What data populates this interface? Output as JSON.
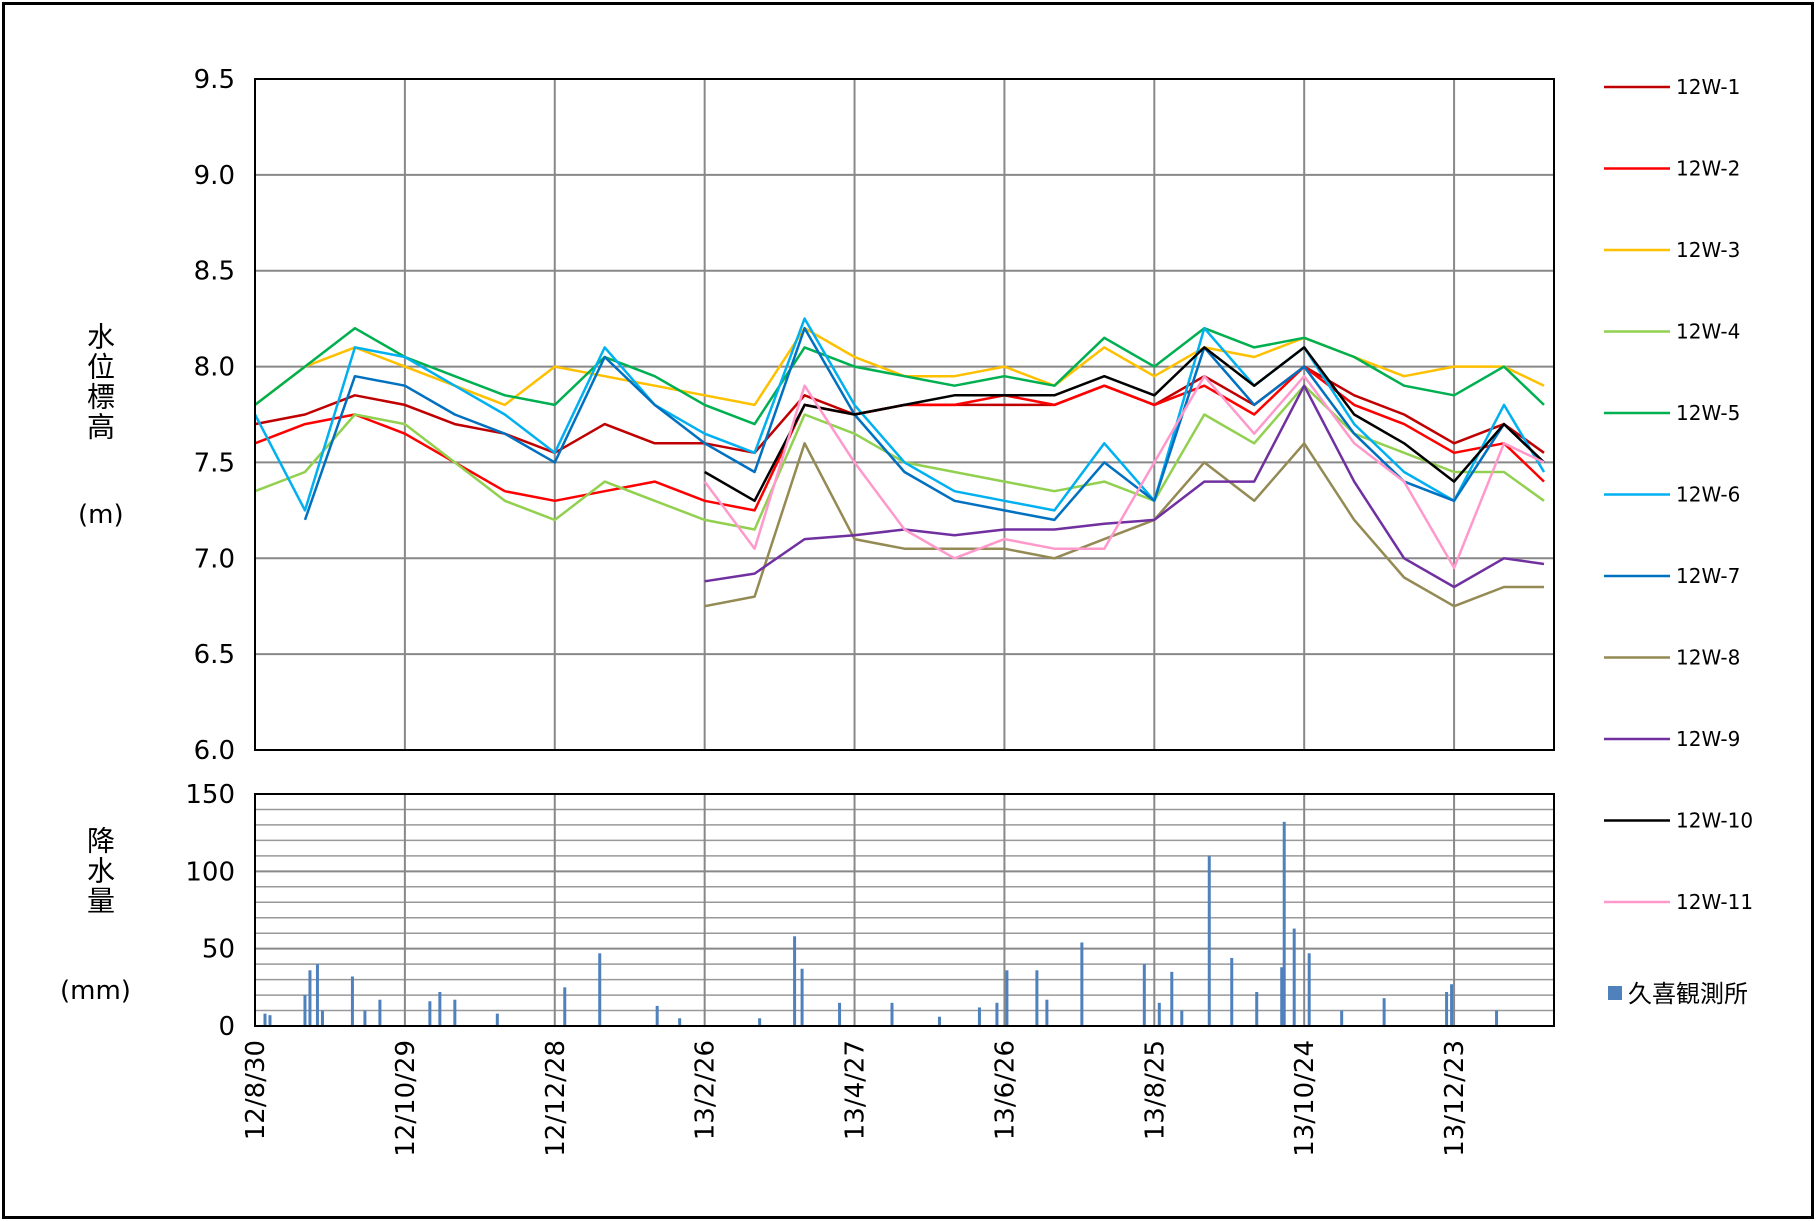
{
  "chart_data": [
    {
      "type": "line",
      "y_label": "水位標高",
      "y_unit": "(m)",
      "ylim": [
        6.0,
        9.5
      ],
      "yticks": [
        {
          "value": 6.0,
          "label": "6.0"
        },
        {
          "value": 6.5,
          "label": "6.5"
        },
        {
          "value": 7.0,
          "label": "7.0"
        },
        {
          "value": 7.5,
          "label": "7.5"
        },
        {
          "value": 8.0,
          "label": "8.0"
        },
        {
          "value": 8.5,
          "label": "8.5"
        },
        {
          "value": 9.0,
          "label": "9.0"
        },
        {
          "value": 9.5,
          "label": "9.5"
        }
      ],
      "grid": true,
      "x": [
        "12/8/30",
        "12/9/19",
        "12/10/9",
        "12/10/29",
        "12/11/18",
        "12/12/8",
        "12/12/28",
        "13/1/17",
        "13/2/6",
        "13/2/26",
        "13/3/18",
        "13/4/7",
        "13/4/27",
        "13/5/17",
        "13/6/6",
        "13/6/26",
        "13/7/16",
        "13/8/5",
        "13/8/25",
        "13/9/14",
        "13/10/4",
        "13/10/24",
        "13/11/13",
        "13/12/3",
        "13/12/23",
        "14/1/12",
        "14/1/28"
      ],
      "series": [
        {
          "name": "12W-1",
          "color": "#c00000",
          "values": [
            7.7,
            7.75,
            7.85,
            7.8,
            7.7,
            7.65,
            7.55,
            7.7,
            7.6,
            7.6,
            7.55,
            7.85,
            7.75,
            7.8,
            7.8,
            7.8,
            7.8,
            7.9,
            7.8,
            7.95,
            7.8,
            8.0,
            7.85,
            7.75,
            7.6,
            7.7,
            7.55
          ]
        },
        {
          "name": "12W-2",
          "color": "#ff0000",
          "values": [
            7.6,
            7.7,
            7.75,
            7.65,
            7.5,
            7.35,
            7.3,
            7.35,
            7.4,
            7.3,
            7.25,
            7.8,
            7.75,
            7.8,
            7.8,
            7.85,
            7.8,
            7.9,
            7.8,
            7.9,
            7.75,
            8.0,
            7.8,
            7.7,
            7.55,
            7.6,
            7.4
          ]
        },
        {
          "name": "12W-3",
          "color": "#ffc000",
          "values": [
            7.8,
            8.0,
            8.1,
            8.0,
            7.9,
            7.8,
            8.0,
            7.95,
            7.9,
            7.85,
            7.8,
            8.2,
            8.05,
            7.95,
            7.95,
            8.0,
            7.9,
            8.1,
            7.95,
            8.1,
            8.05,
            8.15,
            8.05,
            7.95,
            8.0,
            8.0,
            7.9
          ]
        },
        {
          "name": "12W-4",
          "color": "#92d050",
          "values": [
            7.35,
            7.45,
            7.75,
            7.7,
            7.5,
            7.3,
            7.2,
            7.4,
            7.3,
            7.2,
            7.15,
            7.75,
            7.65,
            7.5,
            7.45,
            7.4,
            7.35,
            7.4,
            7.3,
            7.75,
            7.6,
            7.9,
            7.65,
            7.55,
            7.45,
            7.45,
            7.3
          ]
        },
        {
          "name": "12W-5",
          "color": "#00b050",
          "values": [
            7.8,
            8.0,
            8.2,
            8.05,
            7.95,
            7.85,
            7.8,
            8.05,
            7.95,
            7.8,
            7.7,
            8.1,
            8.0,
            7.95,
            7.9,
            7.95,
            7.9,
            8.15,
            8.0,
            8.2,
            8.1,
            8.15,
            8.05,
            7.9,
            7.85,
            8.0,
            7.8
          ]
        },
        {
          "name": "12W-6",
          "color": "#00b0f0",
          "values": [
            7.75,
            7.25,
            8.1,
            8.05,
            7.9,
            7.75,
            7.55,
            8.1,
            7.8,
            7.65,
            7.55,
            8.25,
            7.8,
            7.5,
            7.35,
            7.3,
            7.25,
            7.6,
            7.3,
            8.2,
            7.9,
            8.1,
            7.7,
            7.45,
            7.3,
            7.8,
            7.45
          ]
        },
        {
          "name": "12W-7",
          "color": "#0070c0",
          "values": [
            null,
            7.2,
            7.95,
            7.9,
            7.75,
            7.65,
            7.5,
            8.05,
            7.8,
            7.6,
            7.45,
            8.2,
            7.75,
            7.45,
            7.3,
            7.25,
            7.2,
            7.5,
            7.3,
            8.1,
            7.8,
            8.0,
            7.65,
            7.4,
            7.3,
            7.7,
            7.5
          ]
        },
        {
          "name": "12W-8",
          "color": "#948a54",
          "values": [
            null,
            null,
            null,
            null,
            null,
            null,
            null,
            null,
            null,
            6.75,
            6.8,
            7.6,
            7.1,
            7.05,
            7.05,
            7.05,
            7.0,
            7.1,
            7.2,
            7.5,
            7.3,
            7.6,
            7.2,
            6.9,
            6.75,
            6.85,
            6.85
          ]
        },
        {
          "name": "12W-9",
          "color": "#7030a0",
          "values": [
            null,
            null,
            null,
            null,
            null,
            null,
            null,
            null,
            null,
            6.88,
            6.92,
            7.1,
            7.12,
            7.15,
            7.12,
            7.15,
            7.15,
            7.18,
            7.2,
            7.4,
            7.4,
            7.9,
            7.4,
            7.0,
            6.85,
            7.0,
            6.97
          ]
        },
        {
          "name": "12W-10",
          "color": "#000000",
          "values": [
            null,
            null,
            null,
            null,
            null,
            null,
            null,
            null,
            null,
            7.45,
            7.3,
            7.8,
            7.75,
            7.8,
            7.85,
            7.85,
            7.85,
            7.95,
            7.85,
            8.1,
            7.9,
            8.1,
            7.75,
            7.6,
            7.4,
            7.7,
            7.5
          ]
        },
        {
          "name": "12W-11",
          "color": "#ff99cc",
          "values": [
            null,
            null,
            null,
            null,
            null,
            null,
            null,
            null,
            null,
            7.4,
            7.05,
            7.9,
            7.5,
            7.15,
            7.0,
            7.1,
            7.05,
            7.05,
            7.5,
            7.95,
            7.65,
            7.95,
            7.6,
            7.4,
            6.95,
            7.6,
            7.5
          ]
        }
      ]
    },
    {
      "type": "bar",
      "y_label": "降水量",
      "y_unit": "(mm)",
      "ylim": [
        0,
        150
      ],
      "yticks": [
        0,
        50,
        100,
        150
      ],
      "minor_yticks": [
        10,
        20,
        30,
        40,
        60,
        70,
        80,
        90,
        110,
        120,
        130,
        140
      ],
      "grid": true,
      "xlim": [
        "12/8/30",
        "14/2/1"
      ],
      "xticks": [
        "12/8/30",
        "12/10/29",
        "12/12/28",
        "13/2/26",
        "13/4/27",
        "13/6/26",
        "13/8/25",
        "13/10/24",
        "13/12/23"
      ],
      "series": [
        {
          "name": "久喜観測所",
          "color": "#4f81bd",
          "x": [
            "12/9/3",
            "12/9/5",
            "12/9/19",
            "12/9/21",
            "12/9/24",
            "12/9/26",
            "12/10/8",
            "12/10/13",
            "12/10/19",
            "12/11/8",
            "12/11/12",
            "12/11/18",
            "12/12/5",
            "13/1/1",
            "13/1/15",
            "13/2/7",
            "13/2/16",
            "13/3/20",
            "13/4/3",
            "13/4/6",
            "13/4/21",
            "13/5/12",
            "13/5/31",
            "13/6/16",
            "13/6/23",
            "13/6/27",
            "13/7/9",
            "13/7/13",
            "13/7/27",
            "13/8/21",
            "13/8/27",
            "13/9/1",
            "13/9/5",
            "13/9/16",
            "13/9/25",
            "13/10/5",
            "13/10/15",
            "13/10/16",
            "13/10/20",
            "13/10/26",
            "13/11/8",
            "13/11/25",
            "13/12/20",
            "13/12/22",
            "14/1/9"
          ],
          "values": [
            8,
            7,
            20,
            36,
            40,
            10,
            32,
            10,
            17,
            16,
            22,
            17,
            8,
            25,
            47,
            13,
            5,
            5,
            58,
            37,
            15,
            15,
            6,
            12,
            15,
            36,
            36,
            17,
            54,
            40,
            15,
            35,
            10,
            110,
            44,
            22,
            38,
            132,
            63,
            47,
            10,
            18,
            22,
            27,
            10
          ]
        }
      ]
    }
  ]
}
